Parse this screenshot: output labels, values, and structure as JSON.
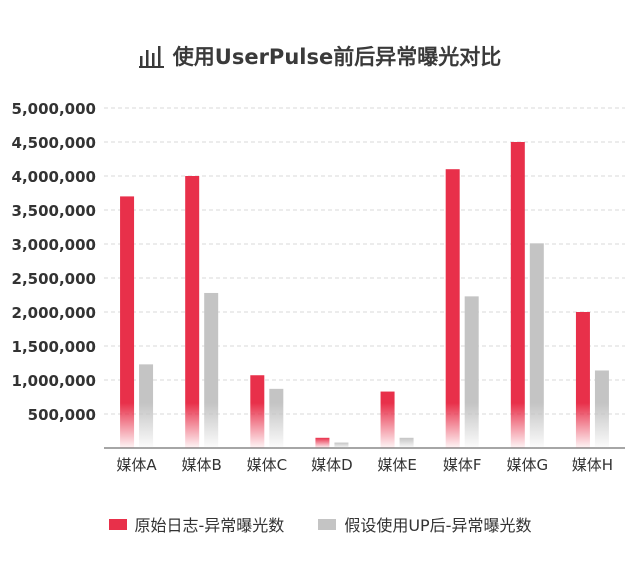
{
  "title": "使用UserPulse前后异常曝光对比",
  "title_icon": "bar-chart-icon",
  "colors": {
    "series1": "#e8304a",
    "series2": "#c4c4c4",
    "grid": "#d9d9d9",
    "axis_text": "#333333"
  },
  "chart_data": {
    "type": "bar",
    "title": "使用UserPulse前后异常曝光对比",
    "categories": [
      "媒体A",
      "媒体B",
      "媒体C",
      "媒体D",
      "媒体E",
      "媒体F",
      "媒体G",
      "媒体H"
    ],
    "series": [
      {
        "name": "原始日志-异常曝光数",
        "values": [
          3700000,
          4000000,
          1070000,
          150000,
          830000,
          4100000,
          4500000,
          2000000
        ]
      },
      {
        "name": "假设使用UP后-异常曝光数",
        "values": [
          1230000,
          2280000,
          870000,
          80000,
          150000,
          2230000,
          3010000,
          1140000
        ]
      }
    ],
    "yticks": [
      "500,000",
      "1,000,000",
      "1,500,000",
      "2,000,000",
      "2,500,000",
      "3,000,000",
      "3,500,000",
      "4,000,000",
      "4,500,000",
      "5,000,000"
    ],
    "ylim": [
      0,
      5000000
    ],
    "grid": true,
    "legend_position": "bottom"
  }
}
